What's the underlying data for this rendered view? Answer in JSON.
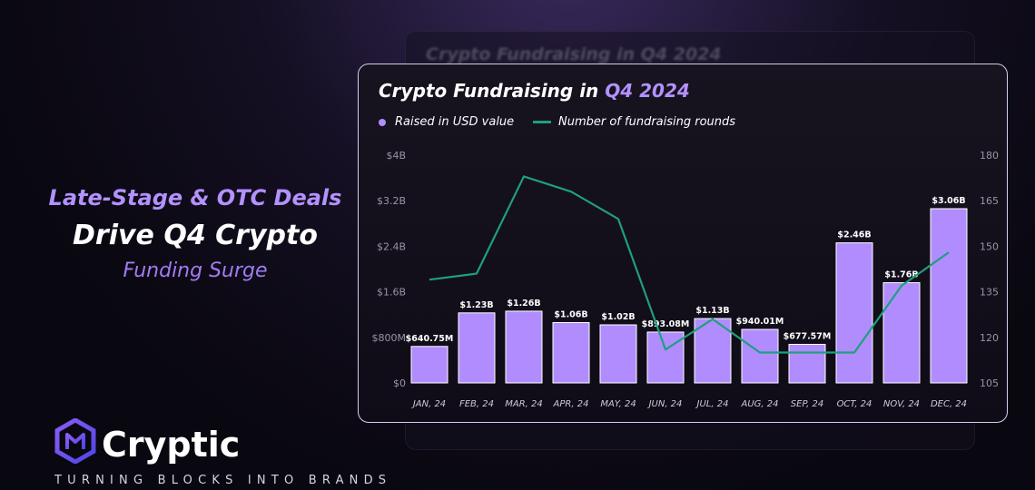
{
  "headline": {
    "line1": "Late-Stage & OTC Deals",
    "line2": "Drive Q4 Crypto",
    "line3": "Funding Surge"
  },
  "ghost_title": "Crypto Fundraising in Q4 2024",
  "card": {
    "title_prefix": "Crypto Fundraising in ",
    "title_highlight": "Q4 2024"
  },
  "legend": {
    "bars": "Raised in USD value",
    "line": "Number of fundraising rounds"
  },
  "brand": {
    "name": "Cryptic",
    "tagline": "TURNING BLOCKS INTO BRANDS",
    "logo_icon": "hexagon-cn-logo-icon"
  },
  "colors": {
    "bar": "#b18cff",
    "line": "#1f9f7b",
    "accent": "#b391ff"
  },
  "chart_data": {
    "type": "bar",
    "title": "Crypto Fundraising in Q4 2024",
    "categories": [
      "JAN, 24",
      "FEB, 24",
      "MAR, 24",
      "APR, 24",
      "MAY, 24",
      "JUN, 24",
      "JUL, 24",
      "AUG, 24",
      "SEP, 24",
      "OCT, 24",
      "NOV, 24",
      "DEC, 24"
    ],
    "series": [
      {
        "name": "Raised in USD value",
        "type": "bar",
        "axis": "left",
        "values": [
          640.75,
          1230,
          1260,
          1060,
          1020,
          893.08,
          1130,
          940.01,
          677.57,
          2460,
          1760,
          3060
        ],
        "unit": "M USD",
        "labels": [
          "$640.75M",
          "$1.23B",
          "$1.26B",
          "$1.06B",
          "$1.02B",
          "$893.08M",
          "$1.13B",
          "$940.01M",
          "$677.57M",
          "$2.46B",
          "$1.76B",
          "$3.06B"
        ]
      },
      {
        "name": "Number of fundraising rounds",
        "type": "line",
        "axis": "right",
        "values": [
          139,
          141,
          173,
          168,
          159,
          116,
          126,
          115,
          115,
          115,
          137,
          148
        ]
      }
    ],
    "left_axis": {
      "ylim": [
        0,
        4000
      ],
      "ticks": [
        0,
        800,
        1600,
        2400,
        3200,
        4000
      ],
      "tick_labels": [
        "$0",
        "$800M",
        "$1.6B",
        "$2.4B",
        "$3.2B",
        "$4B"
      ]
    },
    "right_axis": {
      "ylim": [
        105,
        180
      ],
      "ticks": [
        105,
        120,
        135,
        150,
        165,
        180
      ],
      "tick_labels": [
        "105",
        "120",
        "135",
        "150",
        "165",
        "180"
      ]
    },
    "grid": false,
    "legend_position": "top-left"
  }
}
